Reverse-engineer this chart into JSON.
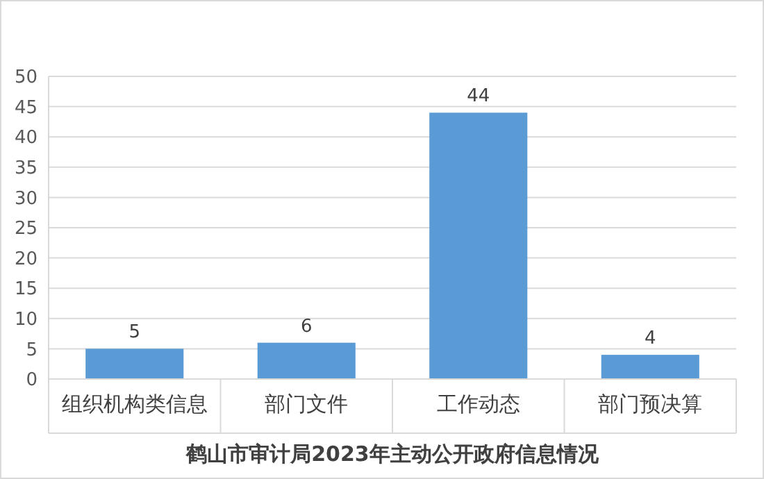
{
  "chart_data": {
    "type": "bar",
    "xlabel": "鹤山市审计局2023年主动公开政府信息情况",
    "categories": [
      "组织机构类信息",
      "部门文件",
      "工作动态",
      "部门预决算"
    ],
    "values": [
      5,
      6,
      44,
      4
    ],
    "color": "#5b9bd5",
    "ylim": [
      0,
      50
    ],
    "yticks": [
      0,
      5,
      10,
      15,
      20,
      25,
      30,
      35,
      40,
      45,
      50
    ],
    "grid": "y",
    "data_labels": true
  }
}
